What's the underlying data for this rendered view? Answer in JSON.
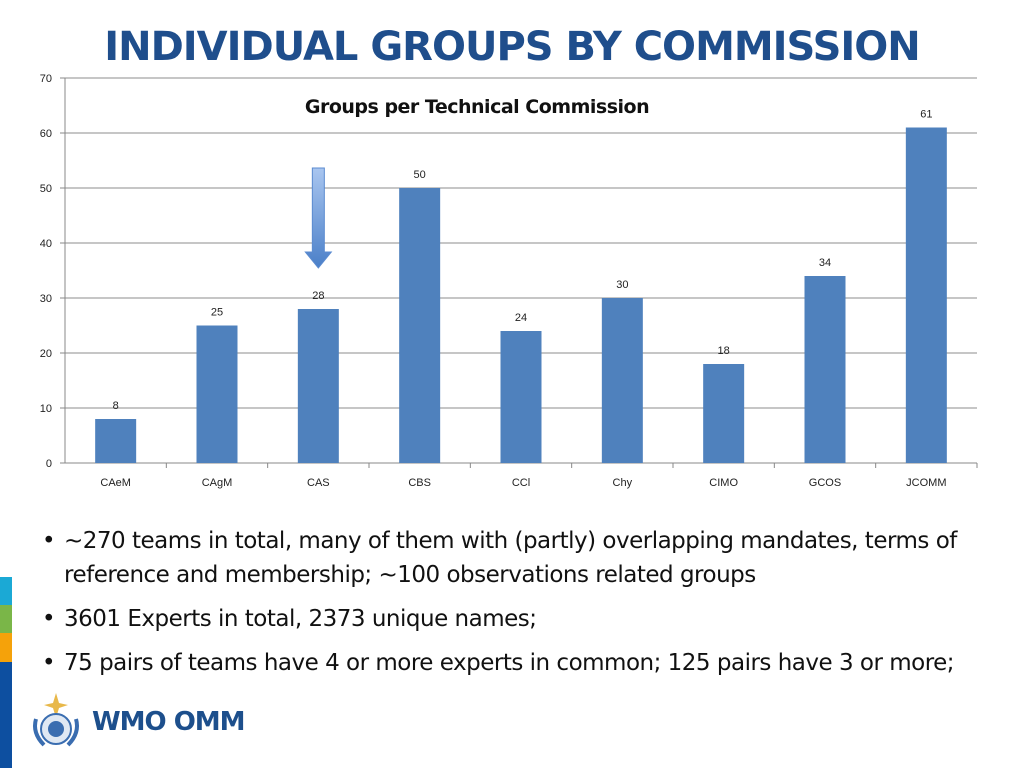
{
  "slide": {
    "title": "INDIVIDUAL GROUPS BY COMMISSION",
    "bullets": [
      "~270 teams in total, many of them with (partly) overlapping mandates, terms of reference and membership; ~100 observations related groups",
      "3601 Experts in total, 2373 unique names;",
      "75 pairs of teams have 4 or more experts in common; 125 pairs have 3 or more;"
    ],
    "logo_text": "WMO OMM",
    "stripe_colors": [
      "#1ba9d5",
      "#7ab648",
      "#f5a20a",
      "#0d4fa0"
    ]
  },
  "chart_data": {
    "type": "bar",
    "title": "Groups per Technical Commission",
    "categories": [
      "CAeM",
      "CAgM",
      "CAS",
      "CBS",
      "CCl",
      "Chy",
      "CIMO",
      "GCOS",
      "JCOMM"
    ],
    "values": [
      8,
      25,
      28,
      50,
      24,
      30,
      18,
      34,
      61
    ],
    "data_labels": [
      "8",
      "25",
      "28",
      "50",
      "24",
      "30",
      "18",
      "34",
      "61"
    ],
    "ylim": [
      0,
      70
    ],
    "yticks": [
      "0",
      "10",
      "20",
      "30",
      "40",
      "50",
      "60",
      "70"
    ],
    "grid": true,
    "bar_color": "#4f81bd",
    "annotation": {
      "type": "down-arrow",
      "category": "CAS"
    }
  }
}
